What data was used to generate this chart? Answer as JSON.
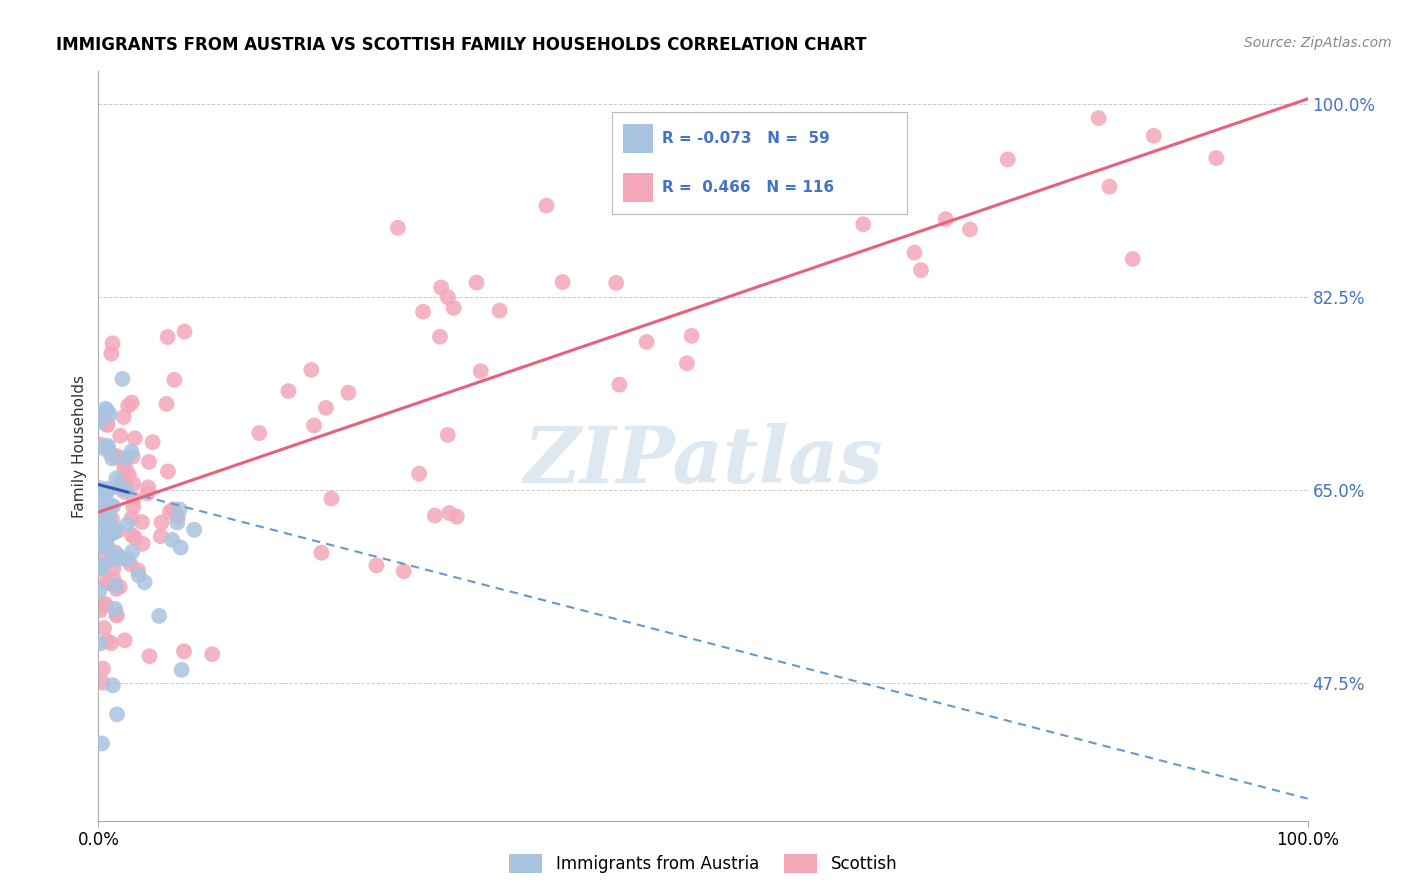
{
  "title": "IMMIGRANTS FROM AUSTRIA VS SCOTTISH FAMILY HOUSEHOLDS CORRELATION CHART",
  "source_text": "Source: ZipAtlas.com",
  "ylabel": "Family Households",
  "y_tick_values": [
    47.5,
    65.0,
    82.5,
    100.0
  ],
  "x_min": 0.0,
  "x_max": 100.0,
  "y_min": 35.0,
  "y_max": 103.0,
  "color_blue": "#a8c4e0",
  "color_pink": "#f4a7b9",
  "color_blue_dark": "#4472c4",
  "trend_blue_solid_color": "#3355aa",
  "trend_blue_dash_color": "#6699cc",
  "trend_pink_color": "#e8607a",
  "watermark_color": "#dde8f0",
  "grid_color": "#cccccc",
  "background_color": "#ffffff",
  "legend_items": [
    {
      "label": "R = -0.073   N =  59",
      "color": "#a8c4e0"
    },
    {
      "label": "R =  0.466   N = 116",
      "color": "#f4a7b9"
    }
  ],
  "bottom_legend": [
    {
      "label": "Immigrants from Austria",
      "color": "#a8c4e0"
    },
    {
      "label": "Scottish",
      "color": "#f4a7b9"
    }
  ],
  "blue_trend_x0": 0.0,
  "blue_trend_y0": 65.5,
  "blue_trend_x1": 100.0,
  "blue_trend_y1": 37.0,
  "blue_solid_end_x": 2.5,
  "pink_trend_x0": 0.0,
  "pink_trend_y0": 63.0,
  "pink_trend_x1": 100.0,
  "pink_trend_y1": 100.5
}
